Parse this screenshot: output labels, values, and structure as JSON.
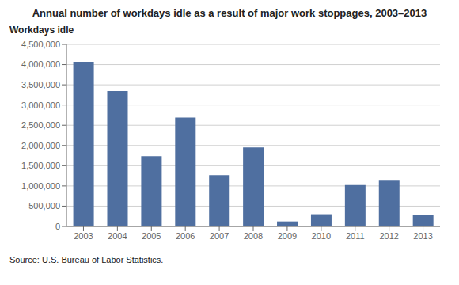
{
  "chart_data": {
    "type": "bar",
    "title": "Annual number of workdays idle as a result of major work stoppages, 2003–2013",
    "ylabel": "Workdays idle",
    "source": "Source: U.S. Bureau of Labor Statistics.",
    "categories": [
      "2003",
      "2004",
      "2005",
      "2006",
      "2007",
      "2008",
      "2009",
      "2010",
      "2011",
      "2012",
      "2013"
    ],
    "values": [
      4070000,
      3344000,
      1736000,
      2688000,
      1265000,
      1954000,
      124000,
      302000,
      1020000,
      1131000,
      290000
    ],
    "color": "#4f6fa0",
    "ylim": [
      0,
      4500000
    ],
    "yticks": [
      0,
      {
        "value": 500000,
        "label": "500,000"
      },
      {
        "value": 1000000,
        "label": "1,000,000"
      },
      {
        "value": 1500000,
        "label": "1,500,000"
      },
      {
        "value": 2000000,
        "label": "2,000,000"
      },
      {
        "value": 2500000,
        "label": "2,500,000"
      },
      {
        "value": 3000000,
        "label": "3,000,000"
      },
      {
        "value": 3500000,
        "label": "3,500,000"
      },
      {
        "value": 4000000,
        "label": "4,000,000"
      },
      {
        "value": 4500000,
        "label": "4,500,000"
      }
    ],
    "grid": true
  }
}
